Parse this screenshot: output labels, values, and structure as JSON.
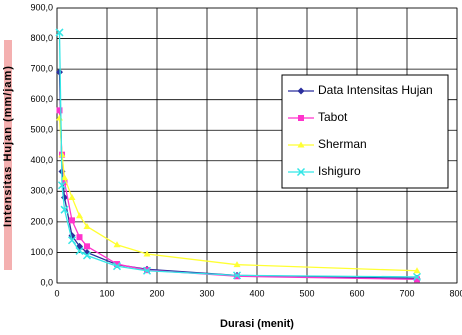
{
  "chart_data": {
    "type": "line",
    "x_label": "Durasi (menit)",
    "y_label": "Intensitas Hujan (mm/jam)",
    "x": [
      5,
      10,
      15,
      30,
      45,
      60,
      120,
      180,
      360,
      720
    ],
    "series": [
      {
        "name": "Data Intensitas Hujan",
        "color": "#2b2f9e",
        "marker": "diamond",
        "values": [
          690,
          365,
          280,
          155,
          120,
          100,
          60,
          45,
          25,
          15
        ]
      },
      {
        "name": "Tabot",
        "color": "#ff33cc",
        "marker": "square",
        "values": [
          565,
          420,
          330,
          205,
          150,
          120,
          62,
          42,
          22,
          12
        ]
      },
      {
        "name": "Sherman",
        "color": "#ffff33",
        "marker": "triangle",
        "values": [
          540,
          420,
          345,
          280,
          220,
          185,
          125,
          95,
          60,
          40
        ]
      },
      {
        "name": "Ishiguro",
        "color": "#33e6e6",
        "marker": "x",
        "values": [
          820,
          320,
          240,
          140,
          105,
          90,
          55,
          40,
          25,
          20
        ]
      }
    ],
    "xlim": [
      0,
      800
    ],
    "xticks": [
      0,
      100,
      200,
      300,
      400,
      500,
      600,
      700,
      800
    ],
    "ylim": [
      0,
      900
    ],
    "yticks": [
      {
        "value": 0,
        "label": "0,0"
      },
      {
        "value": 100,
        "label": "100,0"
      },
      {
        "value": 200,
        "label": "200,0"
      },
      {
        "value": 300,
        "label": "300,0"
      },
      {
        "value": 400,
        "label": "400,0"
      },
      {
        "value": 500,
        "label": "500,0"
      },
      {
        "value": 600,
        "label": "600,0"
      },
      {
        "value": 700,
        "label": "700,0"
      },
      {
        "value": 800,
        "label": "800,0"
      },
      {
        "value": 900,
        "label": "900,0"
      }
    ],
    "grid": true
  }
}
